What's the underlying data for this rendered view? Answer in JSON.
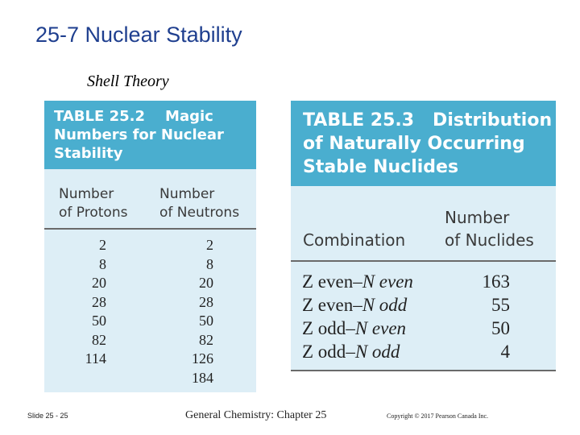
{
  "slide": {
    "title": "25-7 Nuclear Stability",
    "subtitle": "Shell Theory"
  },
  "table_25_2": {
    "title_lines": [
      "TABLE 25.2    Magic",
      "Numbers for Nuclear",
      "Stability"
    ],
    "col1_header": [
      "Number",
      "of Protons"
    ],
    "col2_header": [
      "Number",
      "of Neutrons"
    ],
    "protons": [
      "2",
      "8",
      "20",
      "28",
      "50",
      "82",
      "114"
    ],
    "neutrons": [
      "2",
      "8",
      "20",
      "28",
      "50",
      "82",
      "126",
      "184"
    ]
  },
  "table_25_3": {
    "title_lines": [
      "TABLE 25.3   Distribution",
      "of Naturally Occurring",
      "Stable Nuclides"
    ],
    "col1_header": "Combination",
    "col2_header": [
      "Number",
      "of Nuclides"
    ],
    "rows": [
      {
        "z": "Z even",
        "n": "N even",
        "count": "163"
      },
      {
        "z": "Z even",
        "n": "N odd",
        "count": "55"
      },
      {
        "z": "Z odd",
        "n": "N even",
        "count": "50"
      },
      {
        "z": "Z odd",
        "n": "N odd",
        "count": "4"
      }
    ]
  },
  "footer": {
    "slide_number": "Slide 25 - 25",
    "center": "General Chemistry: Chapter 25",
    "copyright": "Copyright © 2017 Pearson Canada Inc."
  }
}
